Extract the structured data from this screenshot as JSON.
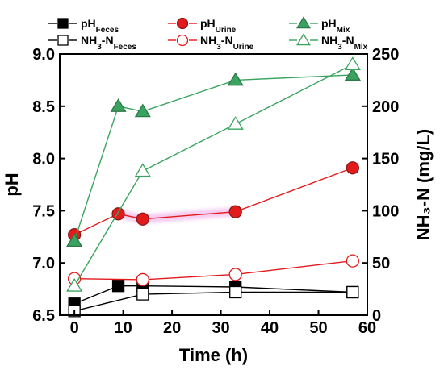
{
  "chart_data": {
    "type": "line",
    "xlabel": "Time (h)",
    "ylabel_left": "pH",
    "ylabel_right": "NH₃-N (mg/L)",
    "xlim": [
      -3,
      60
    ],
    "ylim_left": [
      6.5,
      9.0
    ],
    "ylim_right": [
      0,
      250
    ],
    "x_ticks": [
      0,
      10,
      20,
      30,
      40,
      50,
      60
    ],
    "y_left_ticks": [
      "6.5",
      "7.0",
      "7.5",
      "8.0",
      "8.5",
      "9.0"
    ],
    "y_right_ticks": [
      0,
      50,
      100,
      150,
      200,
      250
    ],
    "grid": false,
    "legend_position": "top",
    "series": [
      {
        "name": "pH",
        "sub": "Feces",
        "axis": "left",
        "color": "#000000",
        "marker": "square",
        "filled": true,
        "x": [
          0,
          9,
          14,
          33,
          57
        ],
        "y": [
          6.61,
          6.78,
          6.78,
          6.77,
          6.72
        ]
      },
      {
        "name": "NH₃-N",
        "sub": "Feces",
        "axis": "right",
        "color": "#000000",
        "marker": "square",
        "filled": false,
        "x": [
          0,
          14,
          33,
          57
        ],
        "y": [
          4,
          20,
          22,
          22
        ]
      },
      {
        "name": "pH",
        "sub": "Urine",
        "axis": "left",
        "color": "#e31a1c",
        "marker": "circle",
        "filled": true,
        "x": [
          0,
          9,
          14,
          33,
          57
        ],
        "y": [
          7.27,
          7.47,
          7.42,
          7.49,
          7.91
        ]
      },
      {
        "name": "NH₃-N",
        "sub": "Urine",
        "axis": "right",
        "color": "#e31a1c",
        "marker": "circle",
        "filled": false,
        "x": [
          0,
          14,
          33,
          57
        ],
        "y": [
          35,
          34,
          39,
          52
        ]
      },
      {
        "name": "pH",
        "sub": "Mix",
        "axis": "left",
        "color": "#3aa35f",
        "marker": "triangle",
        "filled": true,
        "x": [
          0,
          9,
          14,
          33,
          57
        ],
        "y": [
          7.21,
          8.5,
          8.45,
          8.75,
          8.8
        ]
      },
      {
        "name": "NH₃-N",
        "sub": "Mix",
        "axis": "right",
        "color": "#3aa35f",
        "marker": "triangle",
        "filled": false,
        "x": [
          0,
          14,
          33,
          57
        ],
        "y": [
          28,
          138,
          183,
          240
        ]
      }
    ]
  }
}
